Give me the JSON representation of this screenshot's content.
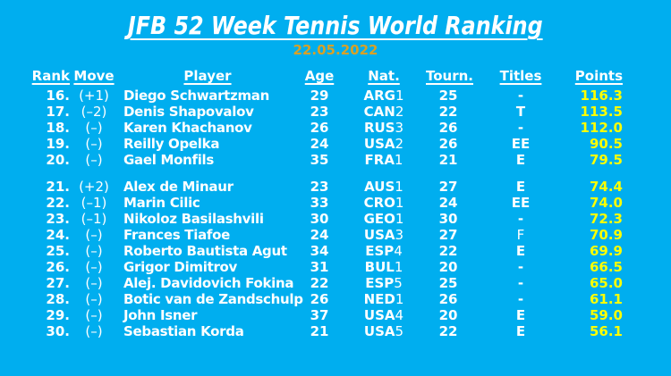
{
  "title": "JFB 52 Week Tennis World Ranking",
  "date": "22.05.2022",
  "colors": {
    "background": "#00AEEF",
    "text": "#FFFFFF",
    "date_gold": "#D7A128",
    "points_yellow": "#FFFF00"
  },
  "table": {
    "headers": [
      "Rank",
      "Move",
      "Player",
      "Age",
      "Nat.",
      "Tourn.",
      "Titles",
      "Points"
    ],
    "groups": [
      {
        "rows": [
          {
            "rank": "16.",
            "move": "(+1)",
            "player": "Diego Schwartzman",
            "age": "29",
            "nat_code": "ARG",
            "nat_rank": "1",
            "tourn": "25",
            "titles": "-",
            "titles_light": false,
            "points": "116.3"
          },
          {
            "rank": "17.",
            "move": "(–2)",
            "player": "Denis Shapovalov",
            "age": "23",
            "nat_code": "CAN",
            "nat_rank": "2",
            "tourn": "22",
            "titles": "T",
            "titles_light": false,
            "points": "113.5"
          },
          {
            "rank": "18.",
            "move": "(–)",
            "player": "Karen Khachanov",
            "age": "26",
            "nat_code": "RUS",
            "nat_rank": "3",
            "tourn": "26",
            "titles": "-",
            "titles_light": false,
            "points": "112.0"
          },
          {
            "rank": "19.",
            "move": "(–)",
            "player": "Reilly Opelka",
            "age": "24",
            "nat_code": "USA",
            "nat_rank": "2",
            "tourn": "26",
            "titles": "EE",
            "titles_light": false,
            "points": "90.5"
          },
          {
            "rank": "20.",
            "move": "(–)",
            "player": "Gael Monfils",
            "age": "35",
            "nat_code": "FRA",
            "nat_rank": "1",
            "tourn": "21",
            "titles": "E",
            "titles_light": false,
            "points": "79.5"
          }
        ]
      },
      {
        "rows": [
          {
            "rank": "21.",
            "move": "(+2)",
            "player": "Alex de Minaur",
            "age": "23",
            "nat_code": "AUS",
            "nat_rank": "1",
            "tourn": "27",
            "titles": "E",
            "titles_light": false,
            "points": "74.4"
          },
          {
            "rank": "22.",
            "move": "(–1)",
            "player": "Marin Cilic",
            "age": "33",
            "nat_code": "CRO",
            "nat_rank": "1",
            "tourn": "24",
            "titles": "EE",
            "titles_light": false,
            "points": "74.0"
          },
          {
            "rank": "23.",
            "move": "(–1)",
            "player": "Nikoloz Basilashvili",
            "age": "30",
            "nat_code": "GEO",
            "nat_rank": "1",
            "tourn": "30",
            "titles": "-",
            "titles_light": false,
            "points": "72.3"
          },
          {
            "rank": "24.",
            "move": "(–)",
            "player": "Frances Tiafoe",
            "age": "24",
            "nat_code": "USA",
            "nat_rank": "3",
            "tourn": "27",
            "titles": "F",
            "titles_light": true,
            "points": "70.9"
          },
          {
            "rank": "25.",
            "move": "(–)",
            "player": "Roberto Bautista Agut",
            "age": "34",
            "nat_code": "ESP",
            "nat_rank": "4",
            "tourn": "22",
            "titles": "E",
            "titles_light": false,
            "points": "69.9"
          },
          {
            "rank": "26.",
            "move": "(–)",
            "player": "Grigor Dimitrov",
            "age": "31",
            "nat_code": "BUL",
            "nat_rank": "1",
            "tourn": "20",
            "titles": "-",
            "titles_light": false,
            "points": "66.5"
          },
          {
            "rank": "27.",
            "move": "(–)",
            "player": "Alej. Davidovich Fokina",
            "age": "22",
            "nat_code": "ESP",
            "nat_rank": "5",
            "tourn": "25",
            "titles": "-",
            "titles_light": false,
            "points": "65.0"
          },
          {
            "rank": "28.",
            "move": "(–)",
            "player": "Botic van de Zandschulp",
            "age": "26",
            "nat_code": "NED",
            "nat_rank": "1",
            "tourn": "26",
            "titles": "-",
            "titles_light": false,
            "points": "61.1"
          },
          {
            "rank": "29.",
            "move": "(–)",
            "player": "John Isner",
            "age": "37",
            "nat_code": "USA",
            "nat_rank": "4",
            "tourn": "20",
            "titles": "E",
            "titles_light": false,
            "points": "59.0"
          },
          {
            "rank": "30.",
            "move": "(–)",
            "player": "Sebastian Korda",
            "age": "21",
            "nat_code": "USA",
            "nat_rank": "5",
            "tourn": "22",
            "titles": "E",
            "titles_light": false,
            "points": "56.1"
          }
        ]
      }
    ]
  }
}
